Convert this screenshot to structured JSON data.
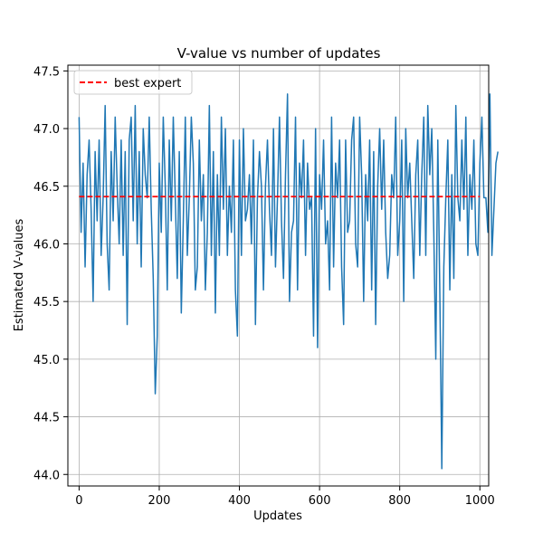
{
  "chart_data": {
    "type": "line",
    "title": "V-value vs number of updates",
    "xlabel": "Updates",
    "ylabel": "Estimated V-values",
    "xlim": [
      -28,
      1022
    ],
    "ylim": [
      43.9,
      47.55
    ],
    "xticks": [
      0,
      200,
      400,
      600,
      800,
      1000
    ],
    "yticks": [
      44.0,
      44.5,
      45.0,
      45.5,
      46.0,
      46.5,
      47.0,
      47.5
    ],
    "grid": true,
    "legend": {
      "position": "top-left",
      "entries": [
        "best expert"
      ]
    },
    "series": [
      {
        "kind": "line",
        "color": "#1f77b4",
        "x_start": 0,
        "x_step": 5,
        "values": [
          47.1,
          46.1,
          46.7,
          45.8,
          46.6,
          46.9,
          46.3,
          45.5,
          46.8,
          46.2,
          46.9,
          45.9,
          46.4,
          47.2,
          46.0,
          45.6,
          46.8,
          46.2,
          47.1,
          46.5,
          46.0,
          46.9,
          45.9,
          46.8,
          45.3,
          46.9,
          47.1,
          46.2,
          47.2,
          46.0,
          46.8,
          45.8,
          47.0,
          46.6,
          46.4,
          47.1,
          46.3,
          45.7,
          44.7,
          45.2,
          46.7,
          46.1,
          47.1,
          46.5,
          45.6,
          46.9,
          46.2,
          47.1,
          46.4,
          45.7,
          46.8,
          45.4,
          46.2,
          47.1,
          45.9,
          46.4,
          47.1,
          46.7,
          45.6,
          45.8,
          46.9,
          46.2,
          46.6,
          45.6,
          46.1,
          47.2,
          45.9,
          46.8,
          45.4,
          46.6,
          45.9,
          47.1,
          46.3,
          47.0,
          45.9,
          46.5,
          46.1,
          46.9,
          45.6,
          45.2,
          46.9,
          45.9,
          47.0,
          46.2,
          46.3,
          46.6,
          46.0,
          46.9,
          45.3,
          46.4,
          46.8,
          46.5,
          45.6,
          46.5,
          46.9,
          46.3,
          45.9,
          47.0,
          45.8,
          46.4,
          47.1,
          46.2,
          45.7,
          46.6,
          47.3,
          45.5,
          46.1,
          46.2,
          47.1,
          45.6,
          46.7,
          46.4,
          46.9,
          45.9,
          46.7,
          46.3,
          46.4,
          45.2,
          47.0,
          45.1,
          46.6,
          46.3,
          46.9,
          46.0,
          46.2,
          45.6,
          47.1,
          45.8,
          46.7,
          46.4,
          46.9,
          45.8,
          45.3,
          46.9,
          46.1,
          46.2,
          46.9,
          47.1,
          46.0,
          45.8,
          47.1,
          46.6,
          45.5,
          46.6,
          46.2,
          46.9,
          45.6,
          46.8,
          45.3,
          46.5,
          47.0,
          46.3,
          46.9,
          46.1,
          45.7,
          45.9,
          46.6,
          46.4,
          47.1,
          45.9,
          46.2,
          46.9,
          45.5,
          47.0,
          46.4,
          46.7,
          46.2,
          45.7,
          46.6,
          46.9,
          45.9,
          46.6,
          47.1,
          45.9,
          47.2,
          46.6,
          47.0,
          46.1,
          45.0,
          46.9,
          45.6,
          44.05,
          45.8,
          46.4,
          46.9,
          45.6,
          46.6,
          45.7,
          47.2,
          46.4,
          46.2,
          46.9,
          46.3,
          47.1,
          45.9,
          46.6,
          46.3,
          46.9,
          46.0,
          45.9,
          46.7,
          47.1,
          46.4,
          46.4,
          46.1,
          47.3,
          45.9,
          46.3,
          46.7,
          46.8
        ]
      },
      {
        "kind": "hline",
        "name": "best expert",
        "color": "#ff0000",
        "y": 46.41,
        "x_range": [
          0,
          1000
        ],
        "dash": true
      }
    ]
  }
}
